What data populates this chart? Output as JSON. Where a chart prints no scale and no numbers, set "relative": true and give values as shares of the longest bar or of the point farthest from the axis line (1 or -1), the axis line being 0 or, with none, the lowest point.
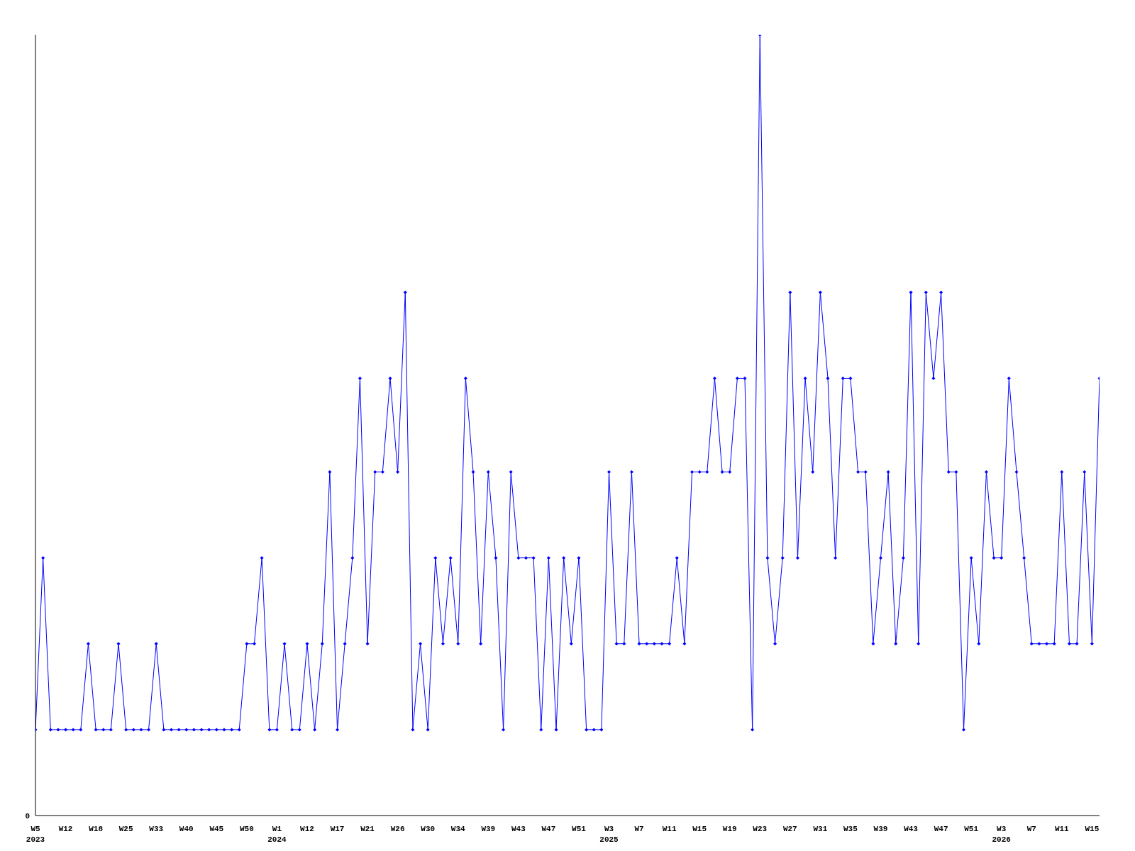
{
  "chart_data": {
    "type": "line",
    "relative": true,
    "annotations": [
      "0"
    ],
    "marker": "diamond",
    "line_style": "solid",
    "grid": false,
    "legend": false,
    "categories": [
      "W5 2023",
      null,
      null,
      null,
      "W12",
      null,
      null,
      null,
      "W18",
      null,
      null,
      null,
      "W25",
      null,
      null,
      null,
      "W33",
      null,
      null,
      null,
      "W40",
      null,
      null,
      null,
      "W45",
      null,
      null,
      null,
      "W50",
      null,
      null,
      null,
      "W1 2024",
      null,
      null,
      null,
      "W12",
      null,
      null,
      null,
      "W17",
      null,
      null,
      null,
      "W21",
      null,
      null,
      null,
      "W26",
      null,
      null,
      null,
      "W30",
      null,
      null,
      null,
      "W34",
      null,
      null,
      null,
      "W39",
      null,
      null,
      null,
      "W43",
      null,
      null,
      null,
      "W47",
      null,
      null,
      null,
      "W51",
      null,
      null,
      null,
      "W3 2025",
      null,
      null,
      null,
      "W7",
      null,
      null,
      null,
      "W11",
      null,
      null,
      null,
      "W15",
      null,
      null,
      null,
      "W19",
      null,
      null,
      null,
      "W23",
      null,
      null,
      null,
      "W27",
      null,
      null,
      null,
      "W31",
      null,
      null,
      null,
      "W35",
      null,
      null,
      null,
      "W39",
      null,
      null,
      null,
      "W43",
      null,
      null,
      null,
      "W47",
      null,
      null,
      null,
      "W51",
      null,
      null,
      null,
      "W3 2026",
      null,
      null,
      null,
      "W7",
      null,
      null,
      null,
      "W11",
      null,
      null,
      null,
      "W15",
      null
    ],
    "series": [
      {
        "color": "#0000ff",
        "values": [
          0.11,
          0.33,
          0.11,
          0.11,
          0.11,
          0.11,
          0.11,
          0.22,
          0.11,
          0.11,
          0.11,
          0.22,
          0.11,
          0.11,
          0.11,
          0.11,
          0.22,
          0.11,
          0.11,
          0.11,
          0.11,
          0.11,
          0.11,
          0.11,
          0.11,
          0.11,
          0.11,
          0.11,
          0.22,
          0.22,
          0.33,
          0.11,
          0.11,
          0.22,
          0.11,
          0.11,
          0.22,
          0.11,
          0.22,
          0.44,
          0.11,
          0.22,
          0.33,
          0.56,
          0.22,
          0.44,
          0.44,
          0.56,
          0.44,
          0.67,
          0.11,
          0.22,
          0.11,
          0.33,
          0.22,
          0.33,
          0.22,
          0.56,
          0.44,
          0.22,
          0.44,
          0.33,
          0.11,
          0.44,
          0.33,
          0.33,
          0.33,
          0.11,
          0.33,
          0.11,
          0.33,
          0.22,
          0.33,
          0.11,
          0.11,
          0.11,
          0.44,
          0.22,
          0.22,
          0.44,
          0.22,
          0.22,
          0.22,
          0.22,
          0.22,
          0.33,
          0.22,
          0.44,
          0.44,
          0.44,
          0.56,
          0.44,
          0.44,
          0.56,
          0.56,
          0.11,
          1,
          0.33,
          0.22,
          0.33,
          0.67,
          0.33,
          0.56,
          0.44,
          0.67,
          0.56,
          0.33,
          0.56,
          0.56,
          0.44,
          0.44,
          0.22,
          0.33,
          0.44,
          0.22,
          0.33,
          0.67,
          0.22,
          0.67,
          0.56,
          0.67,
          0.44,
          0.44,
          0.11,
          0.33,
          0.22,
          0.44,
          0.33,
          0.33,
          0.56,
          0.44,
          0.33,
          0.22,
          0.22,
          0.22,
          0.22,
          0.44,
          0.22,
          0.22,
          0.44,
          0.22,
          0.56
        ]
      }
    ]
  }
}
